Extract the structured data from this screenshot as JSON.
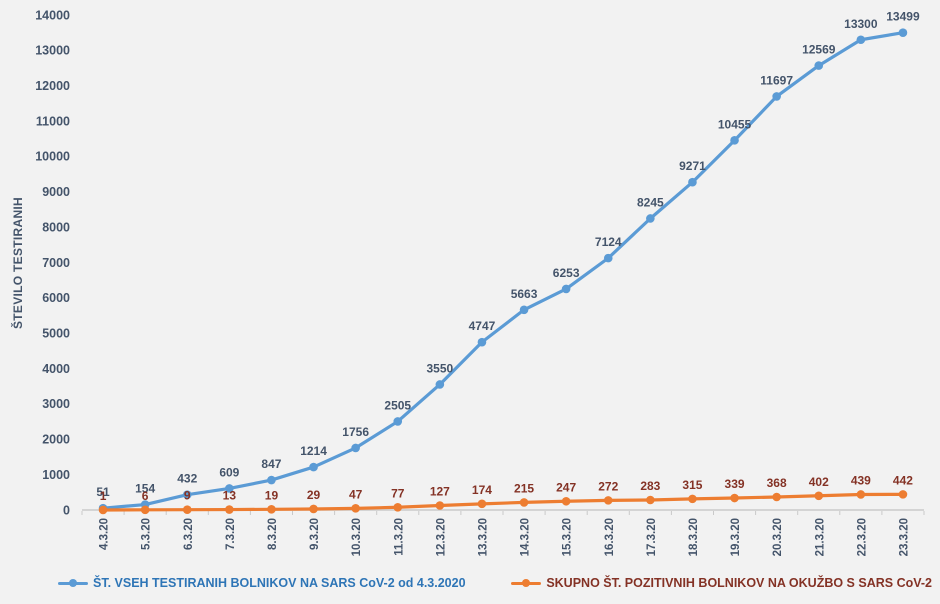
{
  "page": {
    "background_color": "#F2F2F2"
  },
  "chart_data": {
    "type": "line",
    "title": "",
    "xlabel": "",
    "ylabel": "ŠTEVILO TESTIRANIH",
    "ylim": [
      0,
      14000
    ],
    "ytick_step": 1000,
    "grid": false,
    "legend_position": "bottom",
    "axis_text_color": "#44546A",
    "axis_line_color": "#C9C9C9",
    "categories": [
      "4.3.20",
      "5.3.20",
      "6.3.20",
      "7.3.20",
      "8.3.20",
      "9.3.20",
      "10.3.20",
      "11.3.20",
      "12.3.20",
      "13.3.20",
      "14.3.20",
      "15.3.20",
      "16.3.20",
      "17.3.20",
      "18.3.20",
      "19.3.20",
      "20.3.20",
      "21.3.20",
      "22.3.20",
      "23.3.20"
    ],
    "series": [
      {
        "name": "ŠT. VSEH TESTIRANIH BOLNIKOV NA SARS CoV-2 od 4.3.2020",
        "color": "#5B9BD5",
        "label_color": "#44546A",
        "legend_text_color": "#2E75B6",
        "values": [
          51,
          154,
          432,
          609,
          847,
          1214,
          1756,
          2505,
          3550,
          4747,
          5663,
          6253,
          7124,
          8245,
          9271,
          10455,
          11697,
          12569,
          13300,
          13499
        ]
      },
      {
        "name": "SKUPNO ŠT. POZITIVNIH BOLNIKOV NA OKUŽBO S SARS CoV-2",
        "color": "#ED7D31",
        "label_color": "#843225",
        "legend_text_color": "#843225",
        "values": [
          1,
          6,
          9,
          13,
          19,
          29,
          47,
          77,
          127,
          174,
          215,
          247,
          272,
          283,
          315,
          339,
          368,
          402,
          439,
          442
        ]
      }
    ]
  }
}
